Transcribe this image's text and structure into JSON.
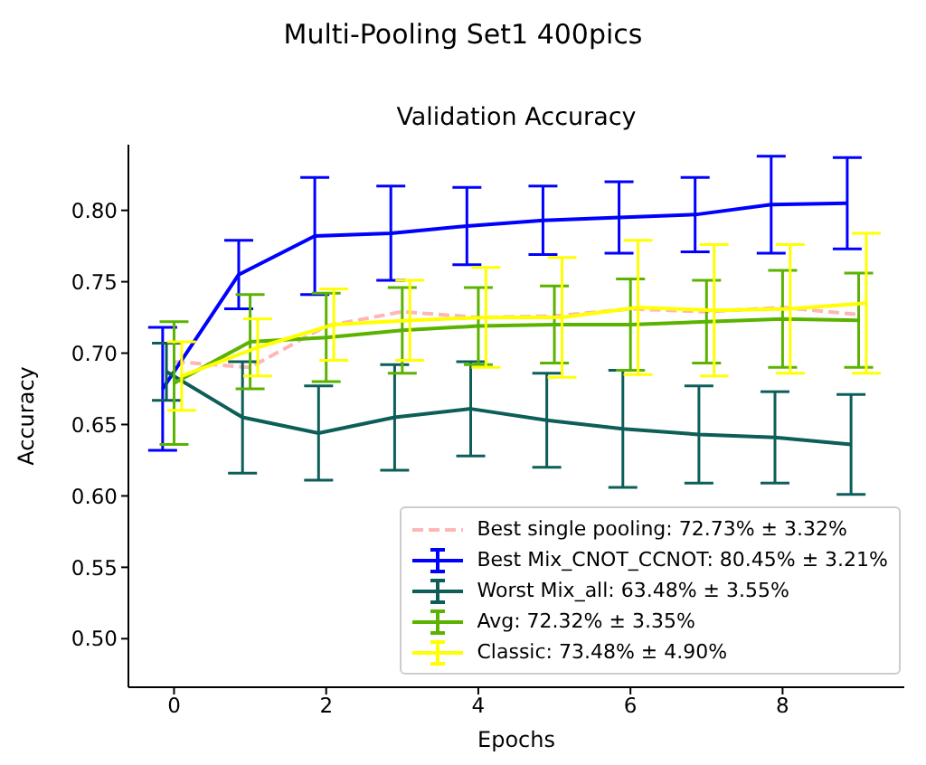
{
  "chart_data": {
    "type": "line",
    "title": "Multi-Pooling Set1 400pics",
    "subtitle": "Validation Accuracy",
    "xlabel": "Epochs",
    "ylabel": "Accuracy",
    "xlim": [
      -0.6,
      9.6
    ],
    "xticks": [
      0,
      2,
      4,
      6,
      8
    ],
    "ylim": [
      0.466,
      0.846
    ],
    "yticks": [
      {
        "value": 0.5,
        "label": "0.50"
      },
      {
        "value": 0.55,
        "label": "0.55"
      },
      {
        "value": 0.6,
        "label": "0.60"
      },
      {
        "value": 0.65,
        "label": "0.65"
      },
      {
        "value": 0.7,
        "label": "0.70"
      },
      {
        "value": 0.75,
        "label": "0.75"
      },
      {
        "value": 0.8,
        "label": "0.80"
      }
    ],
    "grid": false,
    "legend": "bottom right",
    "marker": "none",
    "series": [
      {
        "name": "Best single pooling: 72.73% ± 3.32%",
        "color": "#ffb6b6",
        "line_style": "dashed",
        "x": [
          0,
          1,
          2,
          3,
          4,
          5,
          6,
          7,
          8,
          9
        ],
        "values": [
          0.694,
          0.69,
          0.719,
          0.729,
          0.725,
          0.726,
          0.731,
          0.729,
          0.732,
          0.727
        ]
      },
      {
        "name": "Best Mix_CNOT_CCNOT: 80.45% ± 3.21%",
        "color": "#0000ff",
        "x": [
          -0.15,
          0.85,
          1.85,
          2.85,
          3.85,
          4.85,
          5.85,
          6.85,
          7.85,
          8.85
        ],
        "values": [
          0.675,
          0.755,
          0.782,
          0.784,
          0.789,
          0.793,
          0.795,
          0.797,
          0.804,
          0.805
        ],
        "errors": [
          0.043,
          0.024,
          0.041,
          0.033,
          0.027,
          0.024,
          0.025,
          0.026,
          0.034,
          0.032
        ]
      },
      {
        "name": "Worst Mix_all: 63.48% ± 3.55%",
        "color": "#0d5e58",
        "x": [
          -0.1,
          0.9,
          1.9,
          2.9,
          3.9,
          4.9,
          5.9,
          6.9,
          7.9,
          8.9
        ],
        "values": [
          0.687,
          0.655,
          0.644,
          0.655,
          0.661,
          0.653,
          0.647,
          0.643,
          0.641,
          0.636
        ],
        "errors": [
          0.02,
          0.039,
          0.033,
          0.037,
          0.033,
          0.033,
          0.041,
          0.034,
          0.032,
          0.035
        ]
      },
      {
        "name": "Avg: 72.32% ± 3.35%",
        "color": "#5bb300",
        "x": [
          0,
          1,
          2,
          3,
          4,
          5,
          6,
          7,
          8,
          9
        ],
        "values": [
          0.679,
          0.708,
          0.711,
          0.716,
          0.719,
          0.72,
          0.72,
          0.722,
          0.724,
          0.723
        ],
        "errors": [
          0.043,
          0.033,
          0.031,
          0.03,
          0.027,
          0.027,
          0.032,
          0.029,
          0.034,
          0.033
        ]
      },
      {
        "name": "Classic: 73.48% ± 4.90%",
        "color": "#ffff00",
        "x": [
          0.1,
          1.1,
          2.1,
          3.1,
          4.1,
          5.1,
          6.1,
          7.1,
          8.1,
          9.1
        ],
        "values": [
          0.684,
          0.704,
          0.72,
          0.723,
          0.725,
          0.725,
          0.732,
          0.73,
          0.731,
          0.735
        ],
        "errors": [
          0.024,
          0.02,
          0.025,
          0.028,
          0.035,
          0.042,
          0.047,
          0.046,
          0.045,
          0.049
        ]
      }
    ]
  }
}
